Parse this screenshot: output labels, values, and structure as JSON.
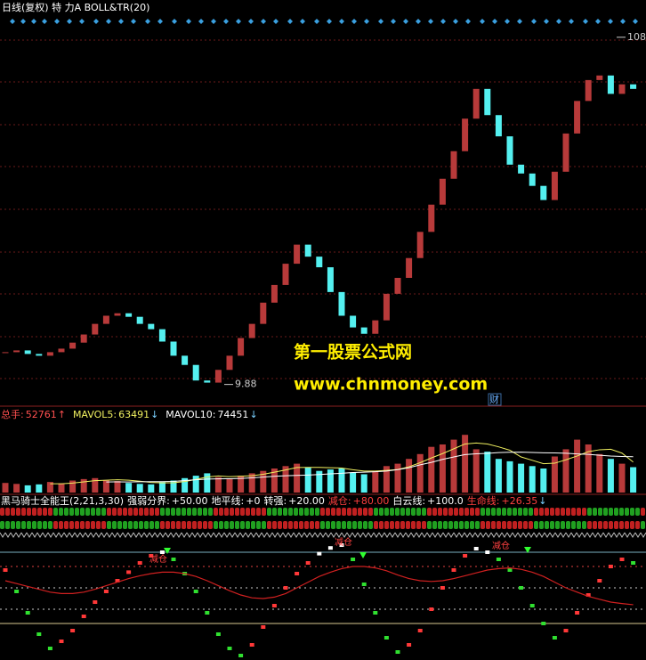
{
  "chart_data": [
    {
      "type": "candlestick",
      "title": "日线(复权)  特 力A  BOLL&TR(20)",
      "categories": [
        null,
        null,
        null,
        null,
        null,
        null,
        null,
        null,
        null,
        null,
        null,
        null,
        null,
        null,
        null,
        null,
        null,
        null,
        null,
        null,
        null,
        null,
        null,
        null,
        null,
        null,
        null,
        null,
        null,
        null,
        null,
        null,
        null,
        null,
        null,
        null,
        null,
        null,
        null,
        null,
        null,
        null,
        null,
        null,
        null,
        null,
        null,
        null,
        null,
        null,
        null,
        null,
        null,
        null,
        null,
        null,
        null
      ],
      "open": [
        18.8,
        19,
        19.5,
        18.5,
        18,
        19,
        20,
        21.7,
        24,
        27,
        29.3,
        30,
        29,
        27,
        25.5,
        22,
        18,
        15.4,
        11,
        10.4,
        14,
        18,
        23,
        27,
        33,
        38,
        44,
        49.4,
        46,
        43,
        36,
        29.3,
        26,
        24.2,
        28,
        35.5,
        40,
        45.6,
        53,
        60.7,
        68,
        75.8,
        85,
        93.4,
        86,
        80,
        72,
        69.5,
        66,
        62,
        70,
        80.8,
        90,
        95.9,
        97.2,
        92,
        94.7
      ],
      "close": [
        19,
        19.5,
        18.5,
        18,
        19,
        20,
        21.7,
        24,
        27,
        29.3,
        30,
        29,
        27,
        25.5,
        22,
        18,
        15.4,
        11,
        10.4,
        14,
        18,
        23,
        27,
        33,
        38,
        44,
        49.4,
        46,
        43,
        36,
        29.3,
        26,
        24.2,
        28,
        35.5,
        40,
        45.6,
        53,
        60.7,
        68,
        75.8,
        85,
        93.4,
        86,
        80,
        72,
        69.5,
        66,
        62,
        70,
        80.8,
        90,
        95.9,
        97.2,
        92,
        94.7,
        93.4
      ],
      "up_color": "#b83a3a",
      "down_color": "#54f0f0",
      "ylim": [
        4,
        114
      ],
      "price_labels": [
        108,
        9.88
      ],
      "watermark": [
        "第一股票公式网",
        "www.chnmoney.com"
      ],
      "badge": "财"
    },
    {
      "type": "bar",
      "label": "总手:",
      "last": 52761,
      "label_arrow": "↑",
      "values": [
        20000,
        18000,
        15000,
        17000,
        22000,
        19000,
        25000,
        28000,
        30000,
        26000,
        24000,
        20000,
        18000,
        17000,
        22000,
        25000,
        30000,
        35000,
        40000,
        32000,
        28000,
        35000,
        40000,
        45000,
        50000,
        55000,
        60000,
        52000,
        45000,
        48000,
        50000,
        42000,
        38000,
        45000,
        55000,
        60000,
        70000,
        80000,
        95000,
        100000,
        110000,
        120000,
        90000,
        85000,
        70000,
        65000,
        60000,
        55000,
        50000,
        75000,
        90000,
        110000,
        100000,
        80000,
        70000,
        60000,
        52761
      ],
      "ylim": [
        0,
        150000
      ],
      "series": [
        {
          "name": "MAVOL5:",
          "last": 63491,
          "arrow": "↓",
          "color": "#f0f060",
          "values": [
            null,
            null,
            null,
            null,
            18400,
            18200,
            19600,
            22200,
            24800,
            25600,
            26600,
            25600,
            23600,
            21000,
            20200,
            20400,
            23000,
            27400,
            32400,
            34400,
            33000,
            34000,
            35000,
            38000,
            42400,
            47000,
            52000,
            52400,
            52400,
            51600,
            51000,
            47400,
            44600,
            44600,
            46000,
            48000,
            53600,
            62000,
            72000,
            81000,
            91000,
            101000,
            103000,
            101000,
            95000,
            88000,
            74000,
            67000,
            60000,
            61000,
            68000,
            76000,
            85000,
            89000,
            90000,
            82000,
            63491
          ]
        },
        {
          "name": "MAVOL10:",
          "last": 74451,
          "arrow": "↓",
          "color": "#ffffff",
          "values": [
            null,
            null,
            null,
            null,
            null,
            null,
            null,
            null,
            null,
            22000,
            22200,
            22000,
            22500,
            22600,
            22600,
            23200,
            24900,
            26700,
            27900,
            28500,
            28800,
            29400,
            30600,
            32200,
            33900,
            35000,
            35700,
            36400,
            37500,
            39000,
            40000,
            41600,
            42400,
            43300,
            44700,
            47600,
            51600,
            57600,
            62800,
            69000,
            74000,
            79000,
            80500,
            81500,
            83000,
            83800,
            84100,
            83300,
            82700,
            82400,
            81800,
            80300,
            79300,
            77600,
            76000,
            75000,
            74451
          ]
        }
      ]
    },
    {
      "type": "line",
      "title": "黑马骑士全能王(2,21,3,30)",
      "ylim": [
        -50,
        140
      ],
      "values": [
        75,
        45,
        15,
        -15,
        -35,
        -25,
        -10,
        10,
        30,
        45,
        60,
        72,
        85,
        95,
        100,
        90,
        70,
        45,
        15,
        -15,
        -35,
        -45,
        -30,
        -5,
        25,
        50,
        70,
        85,
        98,
        106,
        110,
        90,
        55,
        15,
        -20,
        -40,
        -30,
        -10,
        20,
        50,
        75,
        95,
        105,
        100,
        90,
        75,
        50,
        25,
        0,
        -20,
        -10,
        15,
        40,
        60,
        80,
        90,
        85
      ],
      "rise_color": "#ff3838",
      "fall_color": "#30e030",
      "levels": [
        {
          "name": "强弱分界:",
          "value": 50,
          "label": "+50.00",
          "color": "#cccccc"
        },
        {
          "name": "地平线:",
          "value": 0,
          "label": "+0",
          "color": "#d8c890"
        },
        {
          "name": "转强:",
          "value": 20,
          "label": "+20.00",
          "color": "#cccccc"
        },
        {
          "name": "减仓:",
          "value": 80,
          "label": "+80.00",
          "color": "#e04040"
        },
        {
          "name": "白云线:",
          "value": 100,
          "label": "+100.0",
          "color": "#7ab0c0"
        }
      ],
      "life_line": {
        "name": "生命线:",
        "label": "+26.35",
        "arrow": "↓",
        "color": "#d02020",
        "values": [
          60,
          56,
          52,
          48,
          44,
          42,
          42,
          44,
          48,
          53,
          58,
          63,
          67,
          70,
          72,
          72,
          70,
          66,
          60,
          53,
          46,
          40,
          36,
          35,
          37,
          42,
          50,
          58,
          66,
          72,
          77,
          80,
          80,
          78,
          74,
          68,
          63,
          60,
          59,
          60,
          63,
          67,
          71,
          75,
          77,
          78,
          76,
          72,
          66,
          58,
          50,
          44,
          38,
          34,
          30,
          28,
          26.35
        ]
      },
      "annotations": [
        "减仓",
        "减仓",
        "减仓"
      ]
    }
  ]
}
